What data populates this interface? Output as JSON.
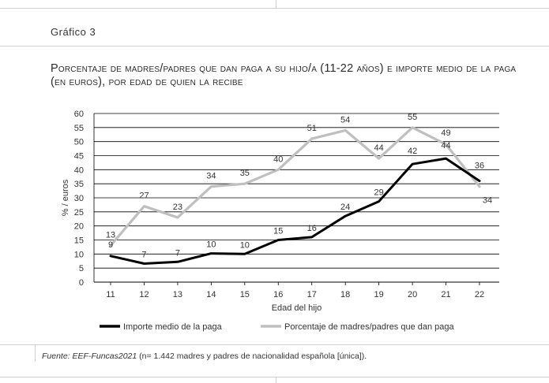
{
  "figure_label": "Gráfico 3",
  "title": "Porcentaje de madres/padres que dan paga a su hijo/a (11-22 años) e importe medio de la paga (en euros), por edad de quien la recibe",
  "source_prefix": "Fuente: EEF-Funcas2021",
  "source_rest": " (n= 1.442 madres y padres de nacionalidad española [única]).",
  "chart_data": {
    "type": "line",
    "categories": [
      "11",
      "12",
      "13",
      "14",
      "15",
      "16",
      "17",
      "18",
      "19",
      "20",
      "21",
      "22"
    ],
    "xlabel": "Edad del hijo",
    "ylabel": "% / euros",
    "ylim": [
      0,
      60
    ],
    "yticks": [
      0,
      5,
      10,
      15,
      20,
      25,
      30,
      35,
      40,
      45,
      50,
      55,
      60
    ],
    "grid": "horizontal",
    "legend_position": "bottom",
    "series": [
      {
        "name": "Importe medio de la paga",
        "color": "#000000",
        "values": [
          9.3,
          6.6,
          7.2,
          10.2,
          10.0,
          15.0,
          16.0,
          23.5,
          28.7,
          42.0,
          44.0,
          36.0
        ],
        "labels": [
          "9",
          "7",
          "7",
          "10",
          "10",
          "15",
          "16",
          "24",
          "29",
          "42",
          "44",
          "36"
        ]
      },
      {
        "name": "Porcentaje de madres/padres que dan paga",
        "color": "#bfbfbf",
        "values": [
          13,
          27,
          23,
          34,
          35,
          40,
          51,
          54,
          44,
          55,
          49,
          34
        ],
        "labels": [
          "13",
          "27",
          "23",
          "34",
          "35",
          "40",
          "51",
          "54",
          "44",
          "55",
          "49",
          "34"
        ]
      }
    ]
  }
}
